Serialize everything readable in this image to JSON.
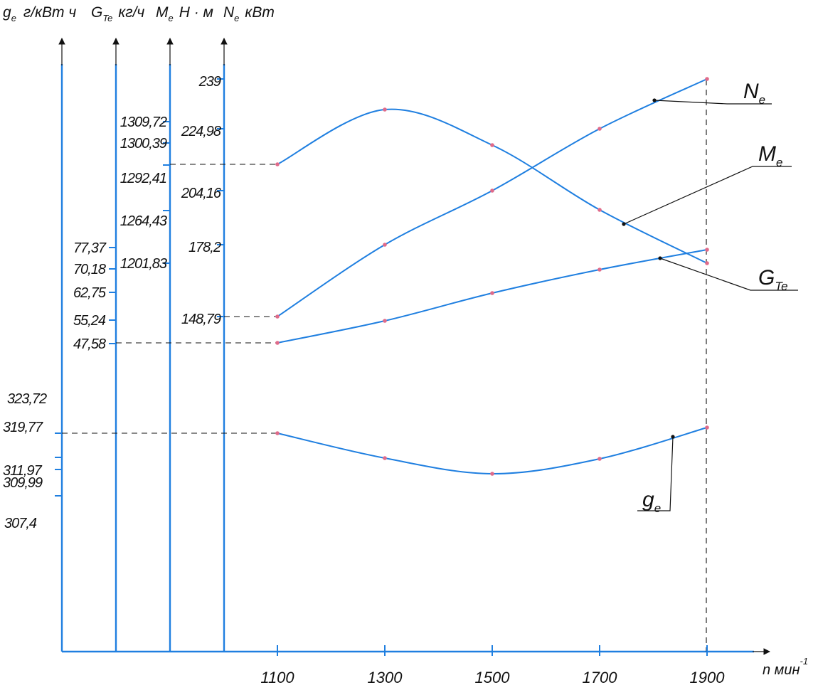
{
  "chart_data": {
    "type": "line",
    "x": [
      1100,
      1300,
      1500,
      1700,
      1900
    ],
    "x_tick_labels": [
      "1100",
      "1300",
      "1500",
      "1700",
      "1900"
    ],
    "x_axis_label": "n мин",
    "x_axis_label_sup": "-1",
    "grid": false,
    "axes": {
      "ge": {
        "header_main": "g",
        "header_sub": "e",
        "header_unit": "г/кВт ч",
        "ticks": [
          323.72,
          319.77,
          311.97,
          309.99,
          307.4
        ],
        "tick_labels": [
          "323,72",
          "319,77",
          "311,97",
          "309,99",
          "307,4"
        ]
      },
      "GTe": {
        "header_main": "G",
        "header_sub": "Te",
        "header_unit": "кг/ч",
        "ticks": [
          77.37,
          70.18,
          62.75,
          55.24,
          47.58
        ],
        "tick_labels": [
          "77,37",
          "70,18",
          "62,75",
          "55,24",
          "47,58"
        ]
      },
      "Me": {
        "header_main": "M",
        "header_sub": "e",
        "header_unit": "Н · м",
        "ticks": [
          1309.72,
          1300.39,
          1292.41,
          1264.43,
          1201.83
        ],
        "tick_labels": [
          "1309,72",
          "1300,39",
          "1292,41",
          "1264,43",
          "1201,83"
        ]
      },
      "Ne": {
        "header_main": "N",
        "header_sub": "e",
        "header_unit": "кВт",
        "ticks": [
          239,
          224.98,
          204.16,
          178.2,
          148.79
        ],
        "tick_labels": [
          "239",
          "224,98",
          "204,16",
          "178,2",
          "148,79"
        ]
      }
    },
    "series": [
      {
        "name": "N",
        "sub": "e",
        "axis": "Ne",
        "values": [
          148.79,
          178.2,
          204.16,
          224.98,
          239
        ]
      },
      {
        "name": "M",
        "sub": "e",
        "axis": "Me",
        "values": [
          1292.41,
          1309.72,
          1300.39,
          1264.43,
          1201.83
        ]
      },
      {
        "name": "G",
        "sub": "Te",
        "axis": "GTe",
        "values": [
          47.58,
          55.24,
          62.75,
          70.18,
          77.37
        ]
      },
      {
        "name": "g",
        "sub": "e",
        "axis": "ge",
        "values": [
          319.77,
          311.97,
          307.4,
          309.99,
          323.72
        ]
      }
    ]
  }
}
